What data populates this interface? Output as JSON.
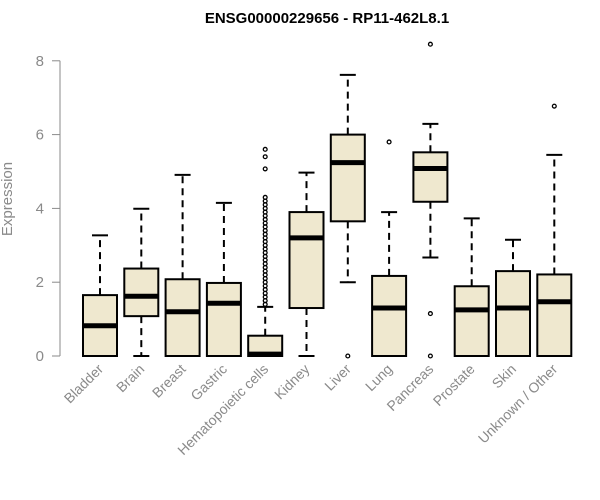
{
  "chart_data": {
    "type": "box",
    "title": "ENSG00000229656 - RP11-462L8.1",
    "ylabel": "Expression",
    "xlabel": "",
    "ylim": [
      0,
      8.3
    ],
    "yticks": [
      0,
      2,
      4,
      6,
      8
    ],
    "box_fill": "#efe8cf",
    "categories": [
      "Bladder",
      "Brain",
      "Breast",
      "Gastric",
      "Hematopoietic cells",
      "Kidney",
      "Liver",
      "Lung",
      "Pancreas",
      "Prostate",
      "Skin",
      "Unknown / Other"
    ],
    "boxes": [
      {
        "whisker_low": 0.0,
        "q1": 0.0,
        "median": 0.82,
        "q3": 1.65,
        "whisker_high": 3.27,
        "outliers": []
      },
      {
        "whisker_low": 0.0,
        "q1": 1.08,
        "median": 1.62,
        "q3": 2.37,
        "whisker_high": 3.99,
        "outliers": []
      },
      {
        "whisker_low": 0.0,
        "q1": 0.0,
        "median": 1.2,
        "q3": 2.08,
        "whisker_high": 4.91,
        "outliers": []
      },
      {
        "whisker_low": 0.0,
        "q1": 0.0,
        "median": 1.43,
        "q3": 1.98,
        "whisker_high": 4.15,
        "outliers": []
      },
      {
        "whisker_low": 0.0,
        "q1": 0.0,
        "median": 0.05,
        "q3": 0.55,
        "whisker_high": 1.33,
        "outliers": [
          1.4,
          1.5,
          1.6,
          1.7,
          1.8,
          1.9,
          2.0,
          2.1,
          2.2,
          2.3,
          2.4,
          2.5,
          2.6,
          2.7,
          2.8,
          2.9,
          3.0,
          3.1,
          3.2,
          3.3,
          3.4,
          3.5,
          3.6,
          3.7,
          3.8,
          3.9,
          4.0,
          4.1,
          4.2,
          4.3,
          5.07,
          5.4,
          5.6
        ]
      },
      {
        "whisker_low": 0.0,
        "q1": 1.3,
        "median": 3.2,
        "q3": 3.9,
        "whisker_high": 4.97,
        "outliers": []
      },
      {
        "whisker_low": 2.0,
        "q1": 3.65,
        "median": 5.24,
        "q3": 6.0,
        "whisker_high": 7.62,
        "outliers": [
          0.0
        ]
      },
      {
        "whisker_low": 0.0,
        "q1": 0.0,
        "median": 1.3,
        "q3": 2.17,
        "whisker_high": 3.9,
        "outliers": [
          5.8
        ]
      },
      {
        "whisker_low": 2.67,
        "q1": 4.18,
        "median": 5.08,
        "q3": 5.52,
        "whisker_high": 6.29,
        "outliers": [
          0.0,
          1.15,
          8.45
        ]
      },
      {
        "whisker_low": 0.0,
        "q1": 0.0,
        "median": 1.25,
        "q3": 1.89,
        "whisker_high": 3.73,
        "outliers": []
      },
      {
        "whisker_low": 0.0,
        "q1": 0.0,
        "median": 1.3,
        "q3": 2.3,
        "whisker_high": 3.15,
        "outliers": []
      },
      {
        "whisker_low": 0.0,
        "q1": 0.0,
        "median": 1.47,
        "q3": 2.21,
        "whisker_high": 5.45,
        "outliers": [
          6.77
        ]
      }
    ]
  }
}
